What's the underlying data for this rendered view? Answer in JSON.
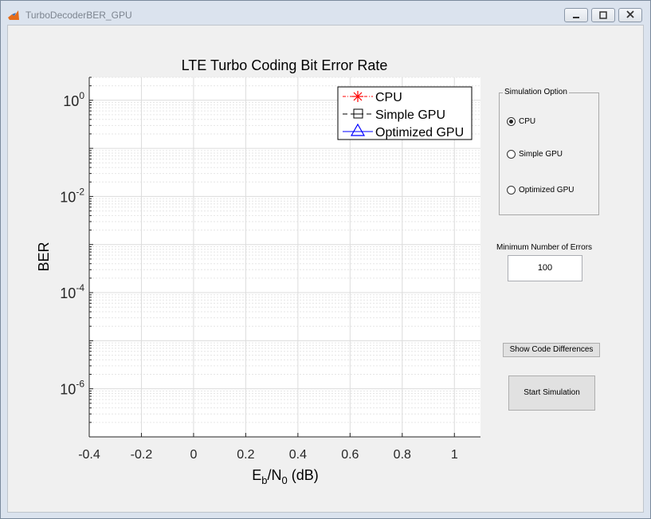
{
  "window": {
    "title": "TurboDecoderBER_GPU"
  },
  "window_controls": {
    "minimize": "minimize-icon",
    "maximize": "maximize-icon",
    "close": "close-icon"
  },
  "chart_data": {
    "type": "line",
    "title": "LTE Turbo Coding Bit Error Rate",
    "xlabel_main": "E",
    "xlabel_sub1": "b",
    "xlabel_mid": "/N",
    "xlabel_sub2": "0",
    "xlabel_unit": "(dB)",
    "ylabel": "BER",
    "xlim": [
      -0.4,
      1.1
    ],
    "ylim": [
      1e-07,
      3
    ],
    "yscale": "log",
    "grid": true,
    "minor_grid": true,
    "xticks": [
      "-0.4",
      "-0.2",
      "0",
      "0.2",
      "0.4",
      "0.6",
      "0.8",
      "1"
    ],
    "yticks": [
      {
        "base": "10",
        "exp": "0"
      },
      {
        "base": "10",
        "exp": "-2"
      },
      {
        "base": "10",
        "exp": "-4"
      },
      {
        "base": "10",
        "exp": "-6"
      }
    ],
    "legend_position": "top-right",
    "series": [
      {
        "name": "CPU",
        "color": "#ff0000",
        "marker": "star",
        "values": []
      },
      {
        "name": "Simple GPU",
        "color": "#000000",
        "marker": "square",
        "values": []
      },
      {
        "name": "Optimized GPU",
        "color": "#0000ff",
        "marker": "triangle",
        "values": []
      }
    ]
  },
  "simulation_option": {
    "title": "Simulation Option",
    "options": [
      {
        "label": "CPU",
        "selected": true
      },
      {
        "label": "Simple GPU",
        "selected": false
      },
      {
        "label": "Optimized GPU",
        "selected": false
      }
    ]
  },
  "min_errors": {
    "label": "Minimum Number of Errors",
    "value": "100"
  },
  "buttons": {
    "show_code": "Show Code Differences",
    "start": "Start Simulation"
  }
}
